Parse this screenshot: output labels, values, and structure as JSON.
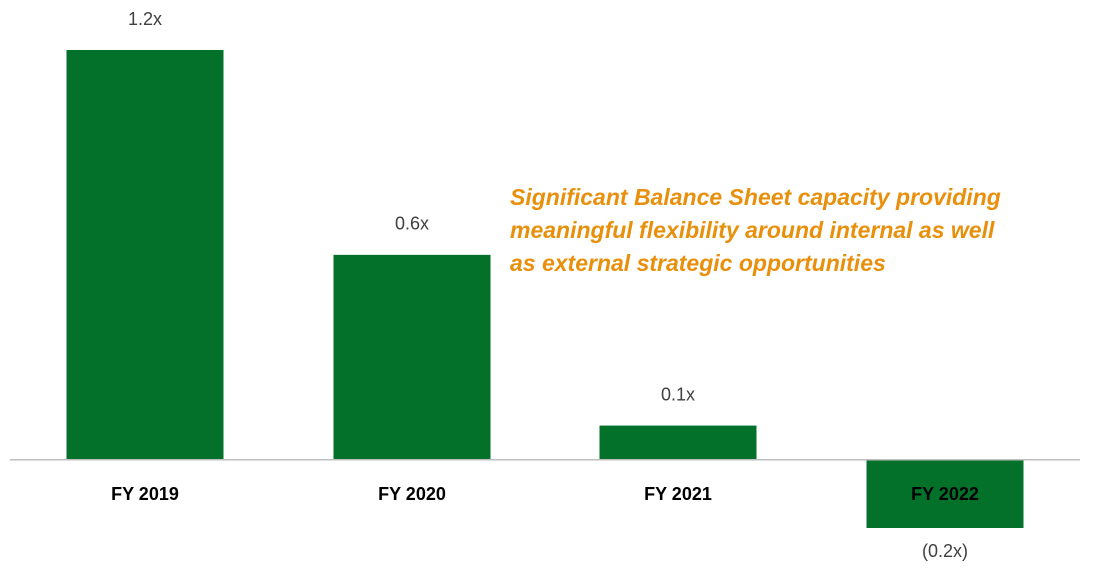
{
  "chart_data": {
    "type": "bar",
    "categories": [
      "FY 2019",
      "FY 2020",
      "FY 2021",
      "FY 2022"
    ],
    "values": [
      1.2,
      0.6,
      0.1,
      -0.2
    ],
    "value_labels": [
      "1.2x",
      "0.6x",
      "0.1x",
      "(0.2x)"
    ],
    "color": "#037129",
    "ylim": [
      -0.2,
      1.2
    ],
    "annotation": [
      "Significant Balance Sheet capacity providing",
      "meaningful flexibility around internal as well",
      "as external strategic opportunities"
    ]
  }
}
